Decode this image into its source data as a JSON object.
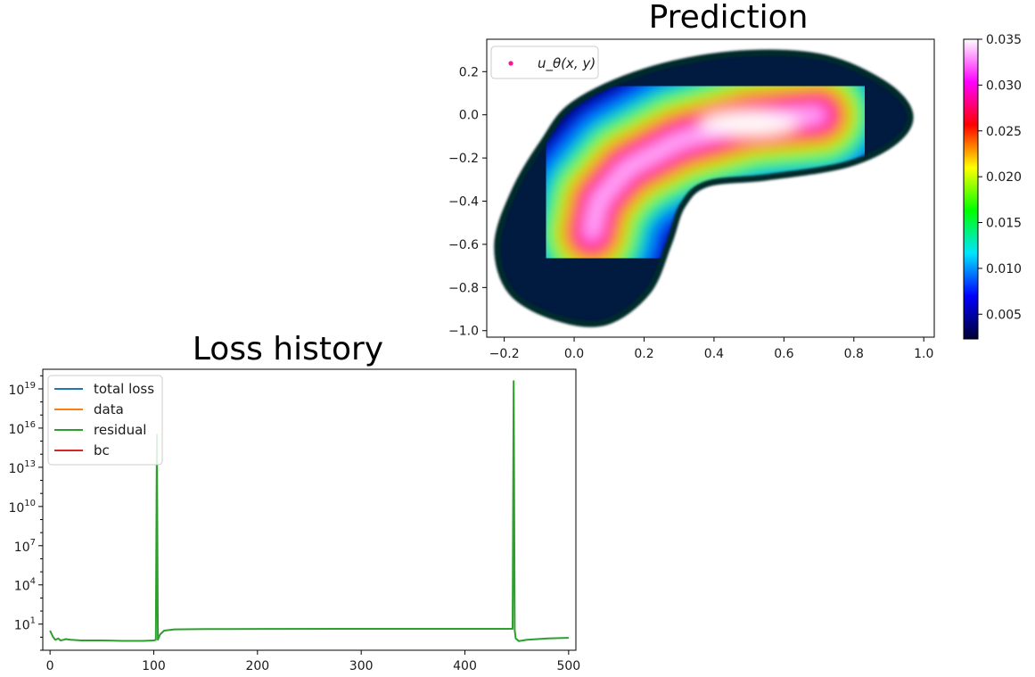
{
  "chart_data": [
    {
      "type": "scatter",
      "title": "Prediction",
      "xlim": [
        -0.25,
        1.03
      ],
      "ylim": [
        -1.03,
        0.35
      ],
      "x_ticks": [
        -0.2,
        0.0,
        0.2,
        0.4,
        0.6,
        0.8,
        1.0
      ],
      "x_tick_labels": [
        "−0.2",
        "0.0",
        "0.2",
        "0.4",
        "0.6",
        "0.8",
        "1.0"
      ],
      "y_ticks": [
        0.2,
        0.0,
        -0.2,
        -0.4,
        -0.6,
        -0.8,
        -1.0
      ],
      "y_tick_labels": [
        "0.2",
        "0.0",
        "−0.2",
        "−0.4",
        "−0.6",
        "−0.8",
        "−1.0"
      ],
      "legend": {
        "placement": "upper-left",
        "entries": [
          "u_θ(x, y)"
        ],
        "marker_color": "#ff1493"
      },
      "colorbar": {
        "range": [
          0.0023,
          0.035
        ],
        "ticks": [
          0.005,
          0.01,
          0.015,
          0.02,
          0.025,
          0.03,
          0.035
        ],
        "tick_labels": [
          "0.005",
          "0.010",
          "0.015",
          "0.020",
          "0.025",
          "0.030",
          "0.035"
        ],
        "colormap": [
          "#000033",
          "#0000ff",
          "#00e5ff",
          "#00ff00",
          "#ffff00",
          "#ff0000",
          "#ff00ff",
          "#ffffff"
        ]
      },
      "spine_points": [
        {
          "x": 0.7,
          "y": 0.0,
          "u": 0.035
        },
        {
          "x": 0.5,
          "y": -0.03,
          "u": 0.035
        },
        {
          "x": 0.3,
          "y": -0.12,
          "u": 0.033
        },
        {
          "x": 0.15,
          "y": -0.25,
          "u": 0.03
        },
        {
          "x": 0.07,
          "y": -0.4,
          "u": 0.026
        },
        {
          "x": 0.05,
          "y": -0.55,
          "u": 0.025
        }
      ],
      "domain_shape": "kidney"
    },
    {
      "type": "line",
      "title": "Loss history",
      "yscale": "log",
      "xlim": [
        -7,
        507
      ],
      "ylim_exp": [
        -1,
        20.5
      ],
      "x_ticks": [
        0,
        100,
        200,
        300,
        400,
        500
      ],
      "x_tick_labels": [
        "0",
        "100",
        "200",
        "300",
        "400",
        "500"
      ],
      "y_tick_exponents": [
        1,
        4,
        7,
        10,
        13,
        16,
        19
      ],
      "legend": {
        "placement": "upper-left"
      },
      "series": [
        {
          "name": "total loss",
          "color": "#1f77b4",
          "values": []
        },
        {
          "name": "data",
          "color": "#ff7f0e",
          "values": []
        },
        {
          "name": "residual",
          "color": "#2ca02c",
          "x": [
            0,
            3,
            5,
            8,
            10,
            13,
            15,
            20,
            30,
            50,
            70,
            90,
            100,
            102,
            103,
            104,
            106,
            110,
            120,
            150,
            200,
            300,
            400,
            445,
            446,
            447,
            448,
            449,
            452,
            460,
            480,
            500
          ],
          "log10": [
            0.5,
            0.0,
            -0.2,
            -0.1,
            -0.25,
            -0.2,
            -0.15,
            -0.2,
            -0.25,
            -0.25,
            -0.28,
            -0.28,
            -0.25,
            -0.2,
            15.5,
            -0.2,
            0.2,
            0.5,
            0.6,
            0.62,
            0.63,
            0.64,
            0.64,
            0.64,
            0.64,
            19.6,
            0.5,
            -0.1,
            -0.3,
            -0.2,
            -0.1,
            -0.05
          ]
        },
        {
          "name": "bc",
          "color": "#d62728",
          "values": []
        }
      ]
    }
  ]
}
